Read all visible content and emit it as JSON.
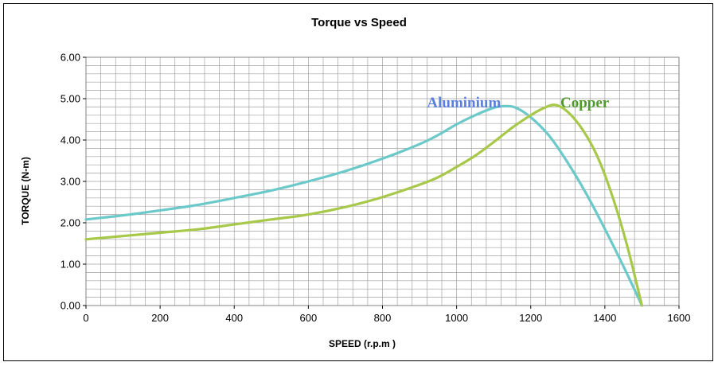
{
  "chart_data": {
    "type": "line",
    "title": "Torque vs Speed",
    "xlabel": "SPEED (r.p.m )",
    "ylabel": "TORQUE (N-m)",
    "xlim": [
      0,
      1600
    ],
    "ylim": [
      0,
      6
    ],
    "x_ticks": [
      0,
      200,
      400,
      600,
      800,
      1000,
      1200,
      1400,
      1600
    ],
    "x_tick_labels": [
      "0",
      "200",
      "400",
      "600",
      "800",
      "1000",
      "1200",
      "1400",
      "1600"
    ],
    "y_ticks": [
      0,
      1,
      2,
      3,
      4,
      5,
      6
    ],
    "y_tick_labels": [
      "0.00",
      "1.00",
      "2.00",
      "3.00",
      "4.00",
      "5.00",
      "6.00"
    ],
    "grid": true,
    "legend": "inline labels",
    "series": [
      {
        "name": "Aluminium",
        "color": "#6cc9c9",
        "label_color": "#5b7fdc",
        "x": [
          0,
          100,
          200,
          300,
          400,
          500,
          600,
          700,
          800,
          900,
          950,
          1000,
          1050,
          1100,
          1130,
          1160,
          1200,
          1250,
          1300,
          1350,
          1400,
          1450,
          1500
        ],
        "y": [
          2.08,
          2.18,
          2.3,
          2.43,
          2.6,
          2.78,
          3.0,
          3.25,
          3.55,
          3.9,
          4.12,
          4.38,
          4.6,
          4.78,
          4.82,
          4.78,
          4.55,
          4.1,
          3.45,
          2.7,
          1.85,
          0.95,
          0.0
        ]
      },
      {
        "name": "Copper",
        "color": "#a8c84a",
        "label_color": "#4f9a2a",
        "x": [
          0,
          100,
          200,
          300,
          400,
          500,
          600,
          700,
          800,
          900,
          950,
          1000,
          1050,
          1100,
          1150,
          1200,
          1230,
          1265,
          1300,
          1340,
          1380,
          1420,
          1460,
          1500
        ],
        "y": [
          1.6,
          1.68,
          1.76,
          1.84,
          1.96,
          2.08,
          2.2,
          2.38,
          2.62,
          2.92,
          3.1,
          3.35,
          3.62,
          3.95,
          4.3,
          4.6,
          4.75,
          4.85,
          4.68,
          4.25,
          3.6,
          2.65,
          1.45,
          0.0
        ]
      }
    ],
    "annotations": [
      {
        "text": "Aluminium",
        "x": 920,
        "y": 4.9,
        "color": "#5b7fdc"
      },
      {
        "text": "Copper",
        "x": 1280,
        "y": 4.9,
        "color": "#4f9a2a"
      }
    ],
    "colors": {
      "grid": "#a0a0a0",
      "axis": "#808080",
      "frame": "#000000"
    }
  }
}
